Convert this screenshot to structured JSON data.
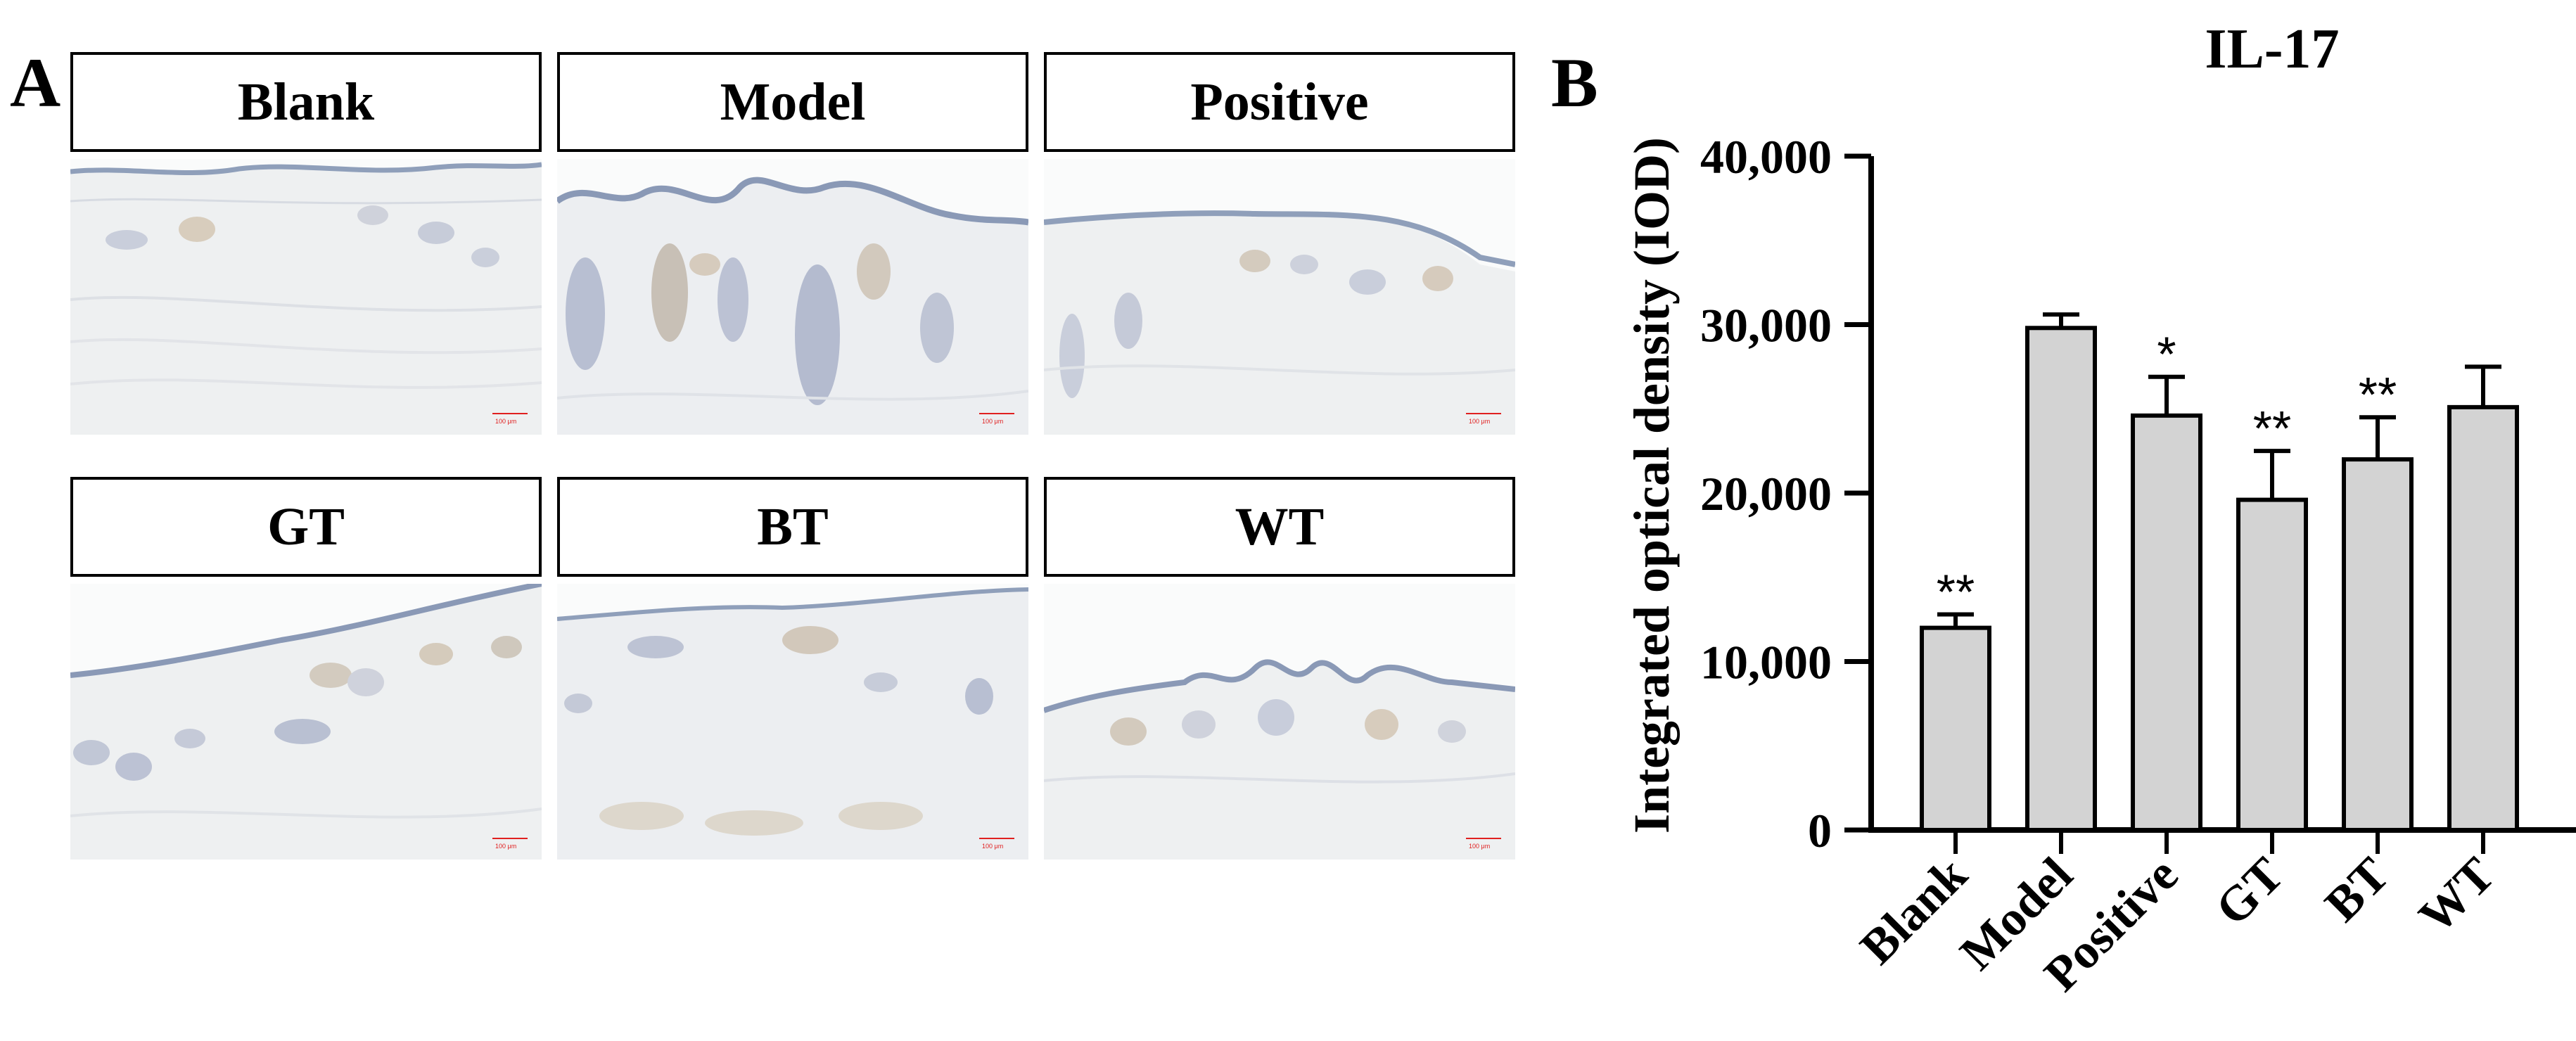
{
  "panel_a": {
    "letter": "A",
    "panels": [
      {
        "label": "Blank",
        "scale_text": "100 μm"
      },
      {
        "label": "Model",
        "scale_text": "100 μm"
      },
      {
        "label": "Positive",
        "scale_text": "100 μm"
      },
      {
        "label": "GT",
        "scale_text": "100 μm"
      },
      {
        "label": "BT",
        "scale_text": "100 μm"
      },
      {
        "label": "WT",
        "scale_text": "100 μm"
      }
    ]
  },
  "panel_b": {
    "letter": "B"
  },
  "chart_data": {
    "type": "bar",
    "title": "IL-17",
    "ylabel": "Integrated optical density (IOD)",
    "xlabel": "",
    "categories": [
      "Blank",
      "Model",
      "Positive",
      "GT",
      "BT",
      "WT"
    ],
    "values": [
      12000,
      29800,
      24600,
      19600,
      22000,
      25100
    ],
    "errors": [
      800,
      800,
      2300,
      2900,
      2500,
      2400
    ],
    "significance": [
      "**",
      "",
      "*",
      "**",
      "**",
      ""
    ],
    "ylim": [
      0,
      40000
    ],
    "yticks": [
      0,
      10000,
      20000,
      30000,
      40000
    ],
    "ytick_labels": [
      "0",
      "10,000",
      "20,000",
      "30,000",
      "40,000"
    ],
    "bar_color": "#d3d3d3",
    "grid": false
  }
}
